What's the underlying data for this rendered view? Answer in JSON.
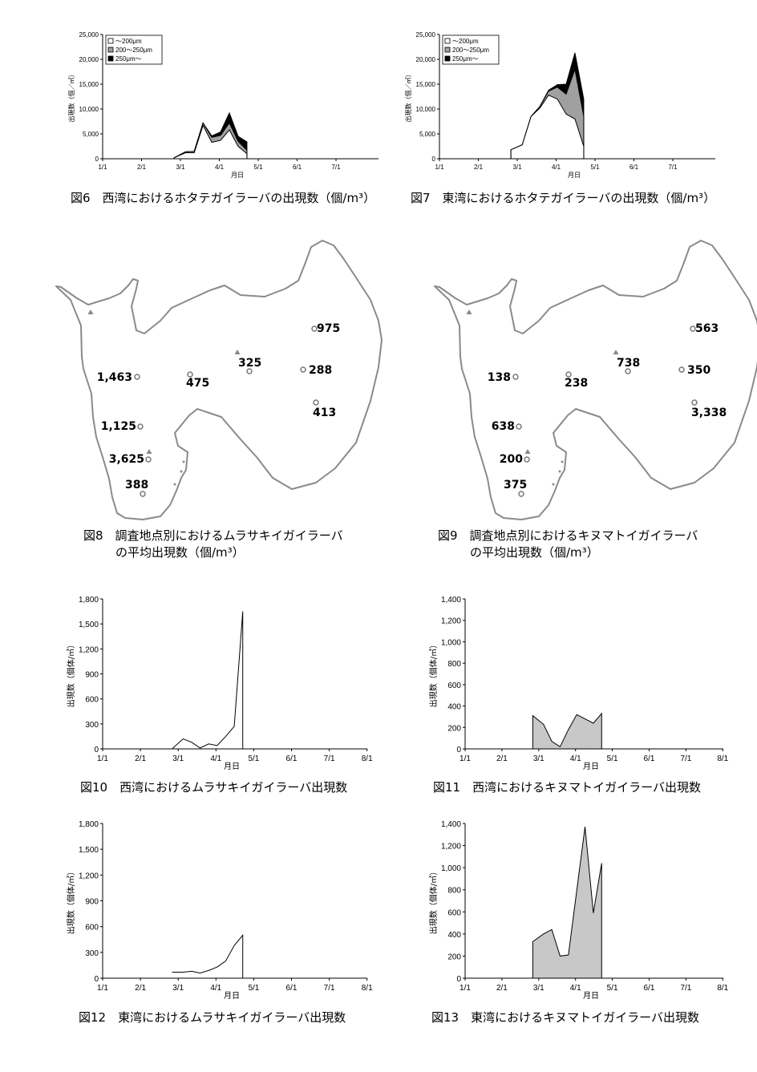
{
  "month_ticks": [
    "1/1",
    "2/1",
    "3/1",
    "4/1",
    "5/1",
    "6/1",
    "7/1"
  ],
  "month_ticks_8": [
    "1/1",
    "2/1",
    "3/1",
    "4/1",
    "5/1",
    "6/1",
    "7/1",
    "8/1"
  ],
  "xlabel": "月日",
  "ylabel_scallop": "出現数（個／㎥）",
  "ylabel_oyster": "出現数（個体/㎥）",
  "captions": {
    "fig6": "図6　西湾におけるホタテガイラーバの出現数（個/m³）",
    "fig7": "図7　東湾におけるホタテガイラーバの出現数（個/m³）",
    "fig8_line1": "図8　調査地点別におけるムラサキイガイラーバ",
    "fig8_line2": "の平均出現数（個/m³）",
    "fig9_line1": "図9　調査地点別におけるキヌマトイガイラーバ",
    "fig9_line2": "の平均出現数（個/m³）",
    "fig10": "図10　西湾におけるムラサキイガイラーバ出現数",
    "fig11": "図11　西湾におけるキヌマトイガイラーバ出現数",
    "fig12": "図12　東湾におけるムラサキイガイラーバ出現数",
    "fig13": "図13　東湾におけるキヌマトイガイラーバ出現数"
  },
  "maps": {
    "fig8": {
      "labels": [
        "1,463",
        "475",
        "325",
        "975",
        "288",
        "413",
        "1,125",
        "3,625",
        "388"
      ],
      "triangles": 3
    },
    "fig9": {
      "labels": [
        "138",
        "238",
        "738",
        "563",
        "350",
        "3,338",
        "638",
        "200",
        "375"
      ],
      "triangles": 3
    }
  },
  "chart_data": [
    {
      "id": "fig6",
      "type": "area",
      "stacked": true,
      "xlabel": "月日",
      "ylabel": "出現数（個／㎥）",
      "x_range": [
        "1/1",
        "7/31"
      ],
      "ylim": [
        0,
        25000
      ],
      "yticks": [
        "0",
        "5,000",
        "10,000",
        "15,000",
        "20,000",
        "25,000"
      ],
      "legend": "top-left",
      "x": [
        "2/27",
        "3/5",
        "3/12",
        "3/19",
        "3/26",
        "4/2",
        "4/9",
        "4/16",
        "4/23"
      ],
      "series": [
        {
          "name": "～200μm",
          "color": "#ffffff",
          "values": [
            200,
            1200,
            1200,
            6700,
            3300,
            3700,
            5800,
            2500,
            1000
          ]
        },
        {
          "name": "200～250μm",
          "color": "#a0a0a0",
          "values": [
            0,
            200,
            300,
            500,
            1000,
            1000,
            1400,
            1000,
            700
          ]
        },
        {
          "name": "250μm～",
          "color": "#000000",
          "values": [
            0,
            0,
            0,
            0,
            300,
            700,
            2000,
            1000,
            1700
          ]
        }
      ]
    },
    {
      "id": "fig7",
      "type": "area",
      "stacked": true,
      "xlabel": "月日",
      "ylabel": "出現数（個／㎥）",
      "x_range": [
        "1/1",
        "7/31"
      ],
      "ylim": [
        0,
        25000
      ],
      "yticks": [
        "0",
        "5,000",
        "10,000",
        "15,000",
        "20,000",
        "25,000"
      ],
      "legend": "top-left",
      "x": [
        "2/27",
        "3/5",
        "3/12",
        "3/19",
        "3/26",
        "4/2",
        "4/9",
        "4/16",
        "4/23"
      ],
      "series": [
        {
          "name": "～200μm",
          "color": "#ffffff",
          "values": [
            1800,
            2800,
            8500,
            10200,
            12800,
            12000,
            9000,
            8000,
            2500
          ]
        },
        {
          "name": "200～250μm",
          "color": "#a0a0a0",
          "values": [
            0,
            0,
            0,
            300,
            800,
            2400,
            4000,
            10000,
            6000
          ]
        },
        {
          "name": "250μm～",
          "color": "#000000",
          "values": [
            0,
            0,
            0,
            0,
            200,
            500,
            2000,
            3300,
            3500
          ]
        }
      ]
    },
    {
      "id": "fig10",
      "type": "line",
      "xlabel": "月日",
      "ylabel": "出現数（個体/㎥）",
      "x_range": [
        "1/1",
        "8/1"
      ],
      "ylim": [
        0,
        1800
      ],
      "yticks": [
        "0",
        "300",
        "600",
        "900",
        "1,200",
        "1,500",
        "1,800"
      ],
      "x": [
        "2/27",
        "3/5",
        "3/12",
        "3/19",
        "3/26",
        "4/2",
        "4/9",
        "4/16",
        "4/23"
      ],
      "values": [
        0,
        120,
        80,
        10,
        60,
        40,
        150,
        270,
        1650
      ]
    },
    {
      "id": "fig11",
      "type": "area",
      "xlabel": "月日",
      "ylabel": "出現数（個体/㎥）",
      "x_range": [
        "1/1",
        "8/1"
      ],
      "ylim": [
        0,
        1400
      ],
      "yticks": [
        "0",
        "200",
        "400",
        "600",
        "800",
        "1,000",
        "1,200",
        "1,400"
      ],
      "x": [
        "2/27",
        "3/5",
        "3/12",
        "3/19",
        "3/26",
        "4/2",
        "4/9",
        "4/16",
        "4/23"
      ],
      "values": [
        310,
        230,
        70,
        20,
        180,
        320,
        280,
        240,
        330
      ]
    },
    {
      "id": "fig12",
      "type": "line",
      "xlabel": "月日",
      "ylabel": "出現数（個体/㎥）",
      "x_range": [
        "1/1",
        "8/1"
      ],
      "ylim": [
        0,
        1800
      ],
      "yticks": [
        "0",
        "300",
        "600",
        "900",
        "1,200",
        "1,500",
        "1,800"
      ],
      "x": [
        "2/27",
        "3/5",
        "3/12",
        "3/19",
        "3/26",
        "4/2",
        "4/9",
        "4/16",
        "4/23"
      ],
      "values": [
        70,
        70,
        80,
        60,
        90,
        130,
        200,
        380,
        500
      ]
    },
    {
      "id": "fig13",
      "type": "area",
      "xlabel": "月日",
      "ylabel": "出現数（個体/㎥）",
      "x_range": [
        "1/1",
        "8/1"
      ],
      "ylim": [
        0,
        1400
      ],
      "yticks": [
        "0",
        "200",
        "400",
        "600",
        "800",
        "1,000",
        "1,200",
        "1,400"
      ],
      "x": [
        "2/27",
        "3/5",
        "3/12",
        "3/19",
        "3/26",
        "4/2",
        "4/9",
        "4/16",
        "4/23"
      ],
      "values": [
        330,
        400,
        440,
        200,
        210,
        790,
        1370,
        590,
        1040
      ]
    }
  ]
}
